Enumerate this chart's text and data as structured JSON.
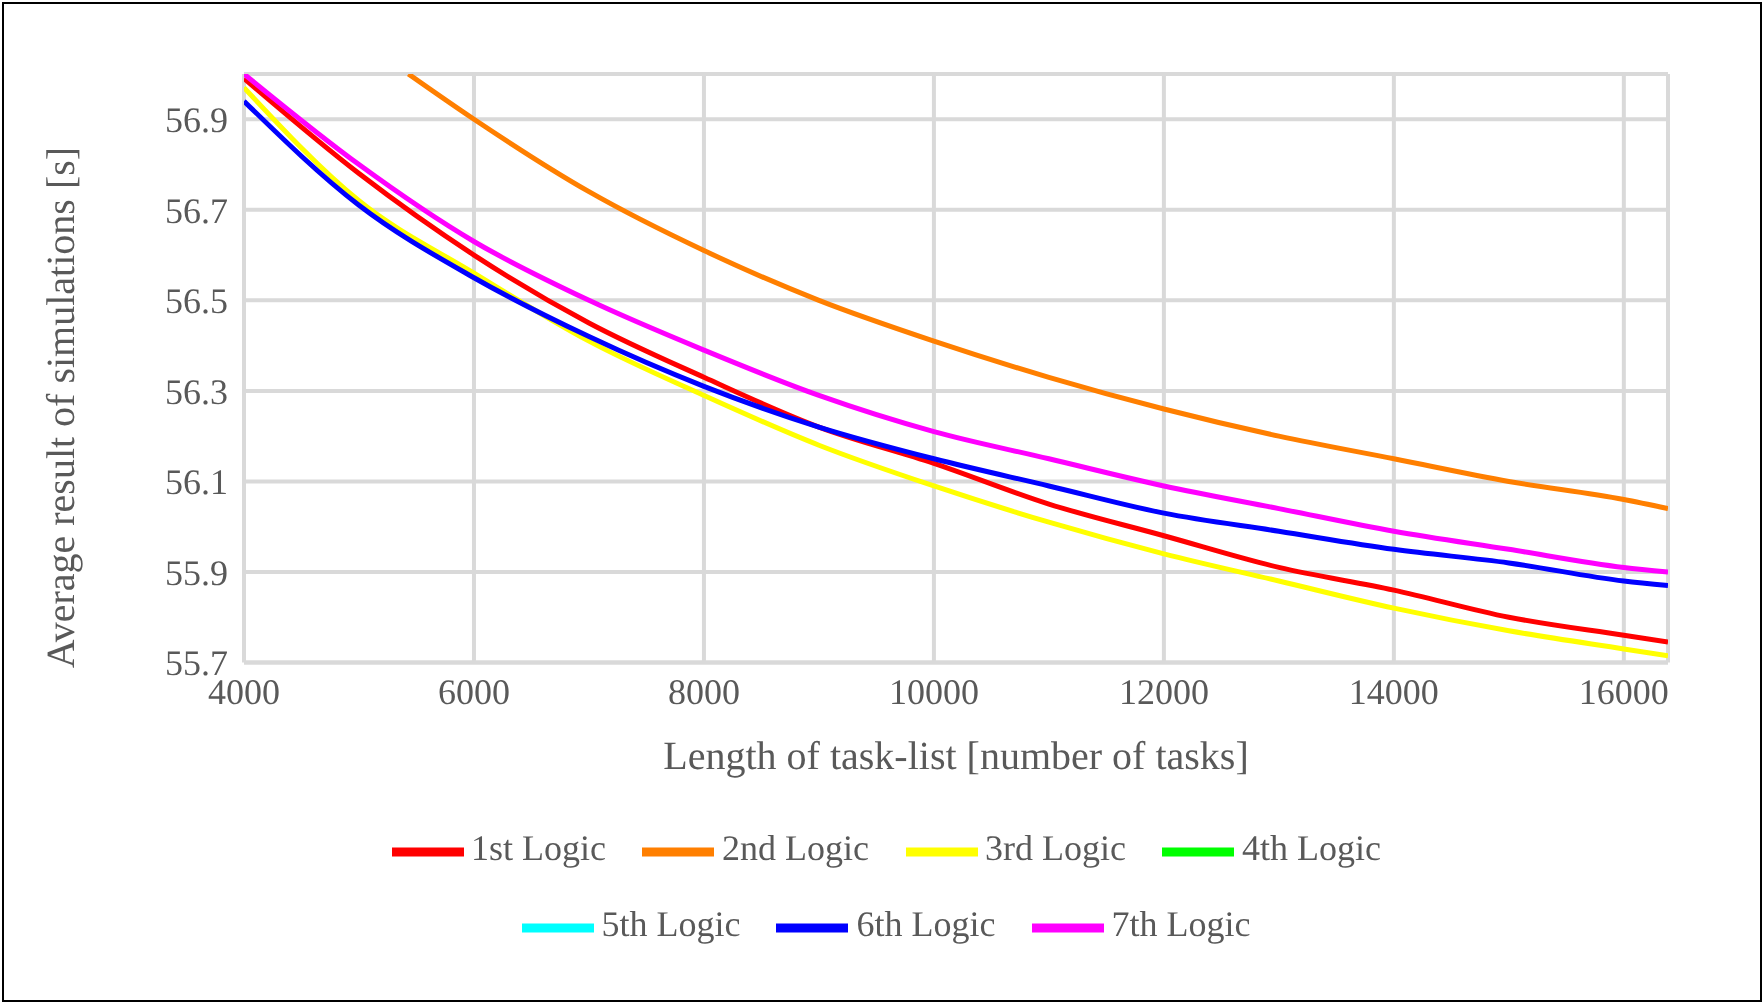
{
  "chart_data": {
    "type": "line",
    "xlabel": "Length of task-list [number of tasks]",
    "ylabel": "Average result of simulations [s]",
    "x": [
      4000,
      5000,
      6000,
      7000,
      8000,
      9000,
      10000,
      11000,
      12000,
      13000,
      14000,
      15000,
      16000,
      16384
    ],
    "series": [
      {
        "name": "1st Logic",
        "color": "#ff0000",
        "values": [
          56.99,
          56.78,
          56.6,
          56.45,
          56.33,
          56.22,
          56.14,
          56.05,
          55.98,
          55.91,
          55.86,
          55.8,
          55.76,
          55.745
        ]
      },
      {
        "name": "2nd Logic",
        "color": "#ff7f00",
        "x": [
          5430,
          6000,
          7000,
          8000,
          9000,
          10000,
          11000,
          12000,
          13000,
          14000,
          15000,
          16000,
          16384
        ],
        "values": [
          57.0,
          56.9,
          56.74,
          56.61,
          56.5,
          56.41,
          56.33,
          56.26,
          56.2,
          56.15,
          56.1,
          56.06,
          56.04
        ]
      },
      {
        "name": "3rd Logic",
        "color": "#ffff00",
        "values": [
          56.97,
          56.72,
          56.56,
          56.41,
          56.29,
          56.18,
          56.09,
          56.01,
          55.94,
          55.88,
          55.82,
          55.77,
          55.73,
          55.715
        ]
      },
      {
        "name": "4th Logic",
        "color": "#00ff00",
        "values": [
          null,
          null,
          null,
          null,
          null,
          null,
          null,
          null,
          null,
          null,
          null,
          null,
          null,
          null
        ]
      },
      {
        "name": "5th Logic",
        "color": "#00ffff",
        "values": [
          null,
          null,
          null,
          null,
          null,
          null,
          null,
          null,
          null,
          null,
          null,
          null,
          null,
          null
        ]
      },
      {
        "name": "6th Logic",
        "color": "#0000ff",
        "values": [
          56.94,
          56.71,
          56.55,
          56.42,
          56.31,
          56.22,
          56.15,
          56.09,
          56.03,
          55.99,
          55.95,
          55.92,
          55.88,
          55.87
        ]
      },
      {
        "name": "7th Logic",
        "color": "#ff00ff",
        "values": [
          57.0,
          56.8,
          56.63,
          56.5,
          56.39,
          56.29,
          56.21,
          56.15,
          56.09,
          56.04,
          55.99,
          55.95,
          55.91,
          55.9
        ]
      }
    ],
    "xlim": [
      4000,
      16384
    ],
    "xticks": [
      4000,
      6000,
      8000,
      10000,
      12000,
      14000,
      16000
    ],
    "ylim": [
      55.7,
      57.0
    ],
    "yticks": [
      55.7,
      55.9,
      56.1,
      56.3,
      56.5,
      56.7,
      56.9
    ],
    "grid": true,
    "legend": "bottom",
    "marker": "none",
    "line_style": "solid"
  }
}
